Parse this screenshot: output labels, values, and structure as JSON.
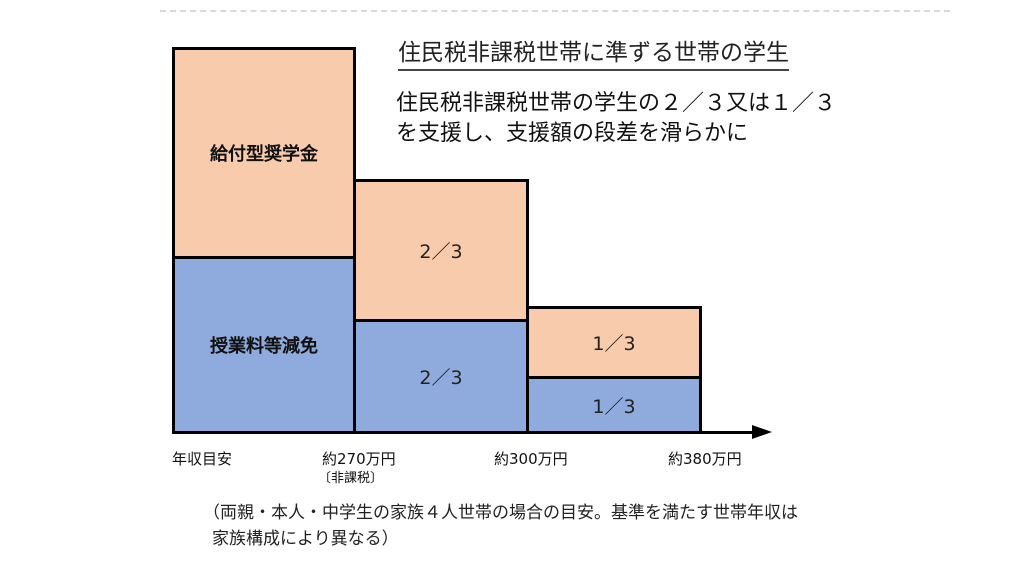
{
  "heading": "住民税非課税世帯に準ずる世帯の学生",
  "description": {
    "line1": "住民税非課税世帯の学生の２／３又は１／３",
    "line2": "を支援し、支援額の段差を滑らかに"
  },
  "blocks": {
    "scholarship_label": "給付型奨学金",
    "tuition_label": "授業料等減免",
    "mid_scholarship": "2／3",
    "mid_tuition": "2／3",
    "right_scholarship": "1／3",
    "right_tuition": "1／3"
  },
  "axis": {
    "label": "年収目安",
    "ticks": [
      "約270万円",
      "約300万円",
      "約380万円"
    ],
    "tick_note": "〔非課税〕"
  },
  "footnote": {
    "line1": "（両親・本人・中学生の家族４人世帯の場合の目安。基準を満たす世帯年収は",
    "line2": "家族構成により異なる）"
  },
  "colors": {
    "scholarship": "#f8cbad",
    "tuition": "#8faadc",
    "border": "#000000"
  }
}
